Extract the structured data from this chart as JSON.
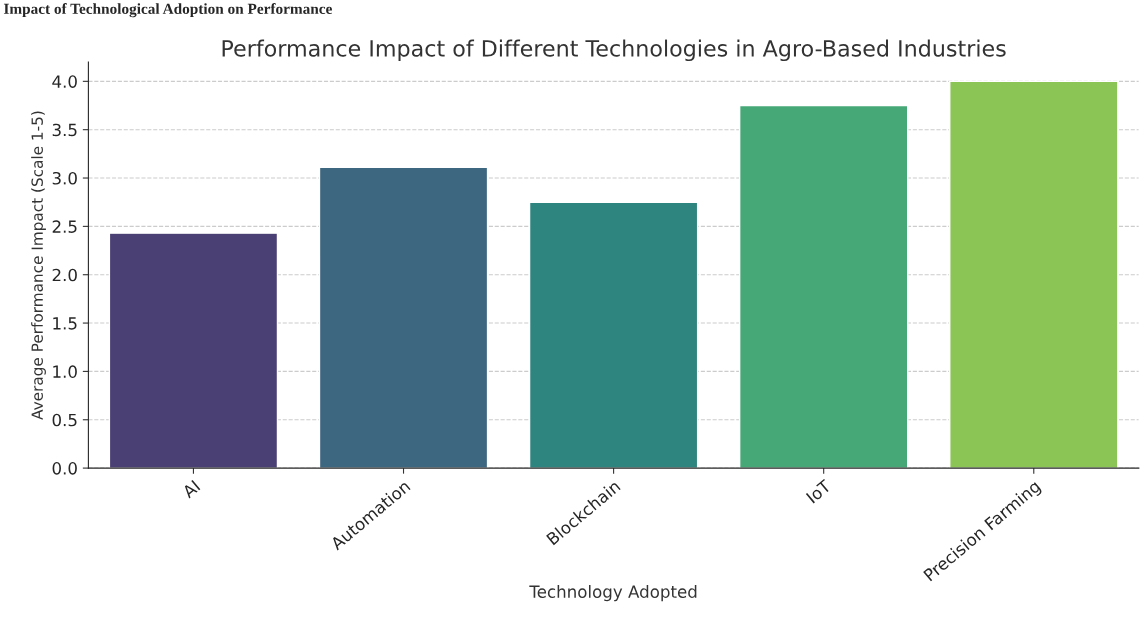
{
  "chart_data": {
    "type": "bar",
    "title": "Performance Impact of Different Technologies in Agro-Based Industries",
    "xlabel": "Technology Adopted",
    "ylabel": "Average Performance Impact (Scale 1-5)",
    "annotations": [
      "Impact of Technological Adoption on Performance"
    ],
    "categories": [
      "AI",
      "Automation",
      "Blockchain",
      "IoT",
      "Precision Farming"
    ],
    "values": [
      2.43,
      3.11,
      2.75,
      3.75,
      4.0
    ],
    "colors": [
      "#4a4074",
      "#3d6680",
      "#2e847e",
      "#46a877",
      "#8bc556"
    ],
    "ylim": [
      0,
      4.2
    ],
    "yticks": [
      {
        "value": 0,
        "label": "0.0"
      },
      {
        "value": 0.5,
        "label": "0.5"
      },
      {
        "value": 1,
        "label": "1.0"
      },
      {
        "value": 1.5,
        "label": "1.5"
      },
      {
        "value": 2,
        "label": "2.0"
      },
      {
        "value": 2.5,
        "label": "2.5"
      },
      {
        "value": 3,
        "label": "3.0"
      },
      {
        "value": 3.5,
        "label": "3.5"
      },
      {
        "value": 4,
        "label": "4.0"
      }
    ],
    "grid": "y"
  }
}
